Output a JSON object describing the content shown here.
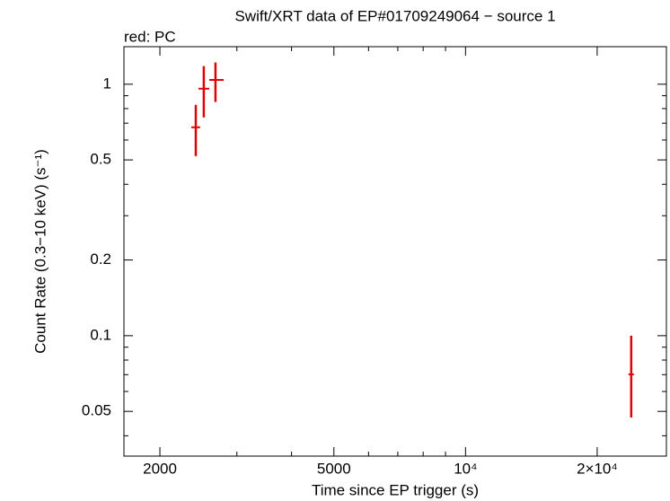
{
  "chart_data": {
    "type": "scatter",
    "title": "Swift/XRT data of EP#01709249064 − source 1",
    "subtitle": "red: PC",
    "x_label": "Time since EP trigger (s)",
    "y_label": "Count Rate (0.3−10 keV) (s⁻¹)",
    "log_x": true,
    "log_y": true,
    "xlim": [
      1655,
      28800
    ],
    "ylim": [
      0.0332,
      1.41
    ],
    "xticks": [
      2000,
      5000,
      {
        "value": 10000,
        "label": "10⁴"
      },
      {
        "value": 20000,
        "label": "2×10⁴"
      }
    ],
    "xminor": [
      3000,
      4000,
      6000,
      7000,
      8000,
      9000
    ],
    "yticks": [
      0.05,
      0.1,
      0.2,
      0.5,
      1
    ],
    "yminor": [
      0.04,
      0.06,
      0.07,
      0.08,
      0.09,
      0.3,
      0.4,
      0.6,
      0.7,
      0.8,
      0.9
    ],
    "series": [
      {
        "name": "PC",
        "color": "#e00000",
        "x": [
          2416,
          2520,
          2680,
          23930
        ],
        "xerr_minus": [
          56,
          70,
          86,
          340
        ],
        "xerr_plus": [
          56,
          74,
          119,
          340
        ],
        "values": [
          0.674,
          0.96,
          1.04,
          0.0702
        ],
        "yerr_minus": [
          0.156,
          0.222,
          0.19,
          0.0229
        ],
        "yerr_plus": [
          0.154,
          0.22,
          0.18,
          0.0298
        ]
      }
    ]
  }
}
